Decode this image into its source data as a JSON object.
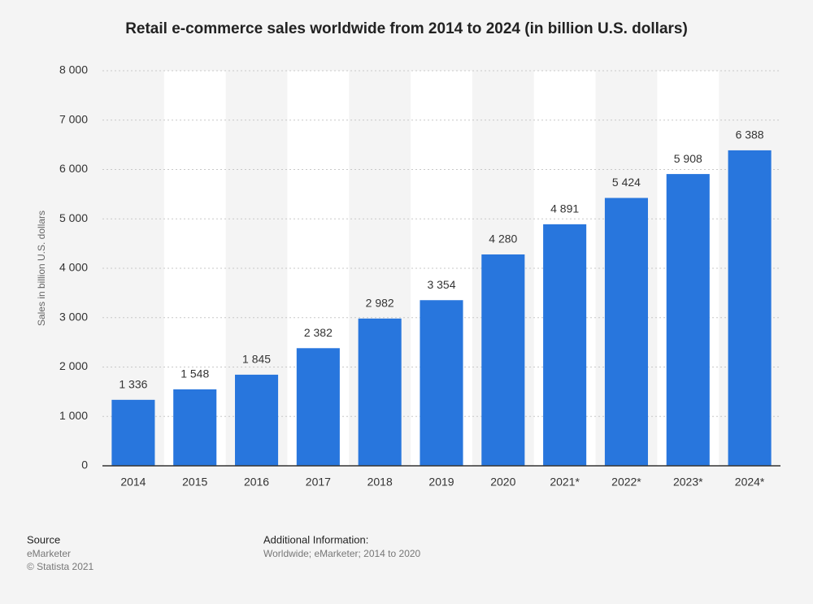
{
  "chart_data": {
    "type": "bar",
    "title": "Retail e-commerce sales worldwide from 2014 to 2024 (in billion U.S. dollars)",
    "y_label": "Sales in billion U.S. dollars",
    "categories": [
      "2014",
      "2015",
      "2016",
      "2017",
      "2018",
      "2019",
      "2020",
      "2021*",
      "2022*",
      "2023*",
      "2024*"
    ],
    "values": [
      1336,
      1548,
      1845,
      2382,
      2982,
      3354,
      4280,
      4891,
      5424,
      5908,
      6388
    ],
    "value_labels": [
      "1 336",
      "1 548",
      "1 845",
      "2 382",
      "2 982",
      "3 354",
      "4 280",
      "4 891",
      "5 424",
      "5 908",
      "6 388"
    ],
    "color": "#2876dd",
    "ylim": [
      0,
      8000
    ],
    "yticks": [
      0,
      {
        "value": 1000,
        "label": "1 000"
      },
      {
        "value": 2000,
        "label": "2 000"
      },
      {
        "value": 3000,
        "label": "3 000"
      },
      {
        "value": 4000,
        "label": "4 000"
      },
      {
        "value": 5000,
        "label": "5 000"
      },
      {
        "value": 6000,
        "label": "6 000"
      },
      {
        "value": 7000,
        "label": "7 000"
      },
      {
        "value": 8000,
        "label": "8 000"
      }
    ],
    "grid": true
  },
  "footer": {
    "source_title": "Source",
    "source": "eMarketer",
    "copyright": "© Statista 2021",
    "info_title": "Additional Information:",
    "info": "Worldwide; eMarketer; 2014 to 2020"
  }
}
